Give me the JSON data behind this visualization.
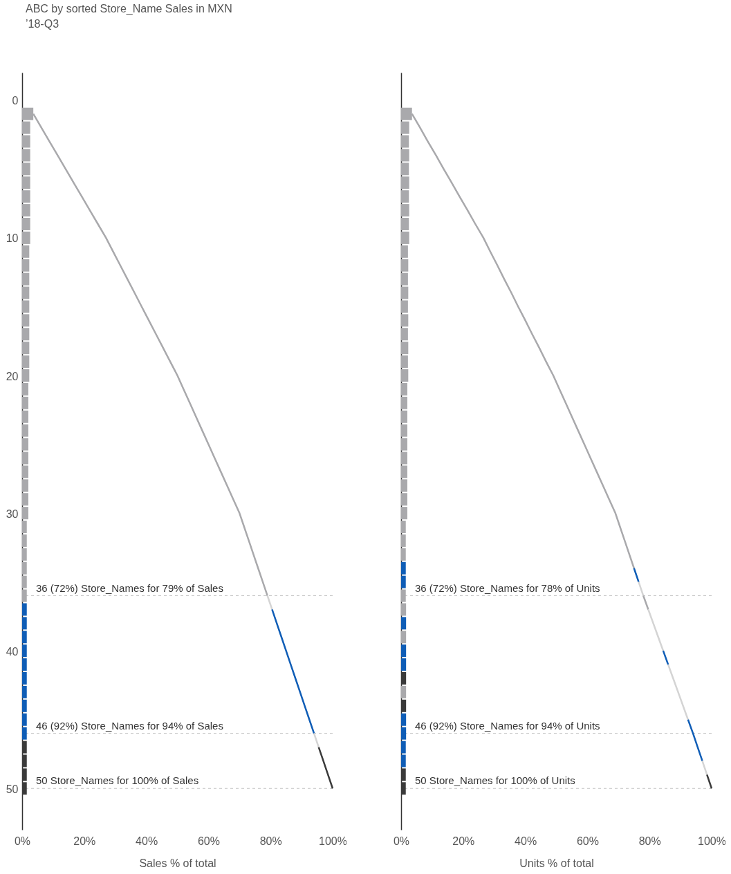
{
  "chart_data": [
    {
      "type": "line",
      "title": "ABC by sorted Store_Name Sales in MXN",
      "subtitle": "’18-Q3",
      "orientation": "horizontal",
      "xlabel": "Sales % of total",
      "xlim": [
        0,
        100
      ],
      "xticks": [
        {
          "value": 0,
          "label": "0%"
        },
        {
          "value": 20,
          "label": "20%"
        },
        {
          "value": 40,
          "label": "40%"
        },
        {
          "value": 60,
          "label": "60%"
        },
        {
          "value": 80,
          "label": "80%"
        },
        {
          "value": 100,
          "label": "100%"
        }
      ],
      "ylim": [
        53,
        -2
      ],
      "yticks": [
        0,
        10,
        20,
        30,
        40,
        50
      ],
      "series": [
        {
          "type": "bar",
          "x": [
            1,
            2,
            3,
            4,
            5,
            6,
            7,
            8,
            9,
            10,
            11,
            12,
            13,
            14,
            15,
            16,
            17,
            18,
            19,
            20,
            21,
            22,
            23,
            24,
            25,
            26,
            27,
            28,
            29,
            30,
            31,
            32,
            33,
            34,
            35,
            36,
            37,
            38,
            39,
            40,
            41,
            42,
            43,
            44,
            45,
            46,
            47,
            48,
            49,
            50
          ],
          "values": [
            3.6,
            2.6,
            2.6,
            2.6,
            2.6,
            2.6,
            2.6,
            2.6,
            2.6,
            2.6,
            2.3,
            2.3,
            2.3,
            2.3,
            2.3,
            2.3,
            2.3,
            2.3,
            2.3,
            2.3,
            2.0,
            2.0,
            2.0,
            2.0,
            2.0,
            2.0,
            2.0,
            2.0,
            2.0,
            2.0,
            1.5,
            1.5,
            1.5,
            1.5,
            1.5,
            1.5,
            1.5,
            1.5,
            1.5,
            1.5,
            1.5,
            1.5,
            1.5,
            1.5,
            1.5,
            1.5,
            1.5,
            1.5,
            1.5,
            1.5
          ],
          "colors": [
            "#a9a9ac",
            "#a9a9ac",
            "#a9a9ac",
            "#a9a9ac",
            "#a9a9ac",
            "#a9a9ac",
            "#a9a9ac",
            "#a9a9ac",
            "#a9a9ac",
            "#a9a9ac",
            "#a9a9ac",
            "#a9a9ac",
            "#a9a9ac",
            "#a9a9ac",
            "#a9a9ac",
            "#a9a9ac",
            "#a9a9ac",
            "#a9a9ac",
            "#a9a9ac",
            "#a9a9ac",
            "#a9a9ac",
            "#a9a9ac",
            "#a9a9ac",
            "#a9a9ac",
            "#a9a9ac",
            "#a9a9ac",
            "#a9a9ac",
            "#a9a9ac",
            "#a9a9ac",
            "#a9a9ac",
            "#a9a9ac",
            "#a9a9ac",
            "#a9a9ac",
            "#a9a9ac",
            "#a9a9ac",
            "#a9a9ac",
            "#0f5db6",
            "#0f5db6",
            "#0f5db6",
            "#0f5db6",
            "#0f5db6",
            "#0f5db6",
            "#0f5db6",
            "#0f5db6",
            "#0f5db6",
            "#0f5db6",
            "#3a3a3a",
            "#3a3a3a",
            "#3a3a3a",
            "#3a3a3a"
          ]
        },
        {
          "color": "#a9a9ac",
          "x": [
            1,
            2,
            3,
            4,
            5,
            6,
            7,
            8,
            9,
            10,
            11,
            12,
            13,
            14,
            15,
            16,
            17,
            18,
            19,
            20,
            21,
            22,
            23,
            24,
            25,
            26,
            27,
            28,
            29,
            30,
            31,
            32,
            33,
            34,
            35,
            36
          ],
          "values": [
            3.6,
            6.2,
            8.8,
            11.4,
            14.0,
            16.6,
            19.2,
            21.8,
            24.4,
            27.0,
            29.3,
            31.6,
            33.9,
            36.2,
            38.5,
            40.8,
            43.1,
            45.4,
            47.7,
            50.0,
            52,
            54,
            56,
            58,
            60,
            62,
            64,
            66,
            68,
            70,
            71.5,
            73,
            74.5,
            76,
            77.5,
            79
          ]
        },
        {
          "color": "#d4d4d4",
          "x": [
            36,
            37
          ],
          "values": [
            79,
            80.5
          ]
        },
        {
          "color": "#0f5db6",
          "x": [
            37,
            38,
            39,
            40,
            41,
            42,
            43,
            44,
            45,
            46
          ],
          "values": [
            80.5,
            82,
            83.5,
            85,
            86.5,
            88,
            89.5,
            91,
            92.5,
            94
          ]
        },
        {
          "color": "#d4d4d4",
          "x": [
            46,
            47
          ],
          "values": [
            94,
            95.5
          ]
        },
        {
          "color": "#3a3a3a",
          "x": [
            47,
            48,
            49,
            50
          ],
          "values": [
            95.5,
            97,
            98.5,
            100
          ]
        }
      ],
      "ref_lines": [
        {
          "axis": "y",
          "value": 36,
          "label": "36 (72%) Store_Names for 79% of Sales",
          "color": "#c4c4c4",
          "line_style": "dashed"
        },
        {
          "axis": "y",
          "value": 46,
          "label": "46 (92%) Store_Names for 94% of Sales",
          "color": "#c4c4c4",
          "line_style": "dashed"
        },
        {
          "axis": "y",
          "value": 50,
          "label": "50 Store_Names for 100% of Sales",
          "color": "#c4c4c4",
          "line_style": "dashed"
        }
      ]
    },
    {
      "type": "line",
      "orientation": "horizontal",
      "xlabel": "Units % of total",
      "xlim": [
        0,
        100
      ],
      "xticks": [
        {
          "value": 0,
          "label": "0%"
        },
        {
          "value": 20,
          "label": "20%"
        },
        {
          "value": 40,
          "label": "40%"
        },
        {
          "value": 60,
          "label": "60%"
        },
        {
          "value": 80,
          "label": "80%"
        },
        {
          "value": 100,
          "label": "100%"
        }
      ],
      "ylim": [
        53,
        -2
      ],
      "yticks": [
        0,
        10,
        20,
        30,
        40,
        50
      ],
      "tick_labels": "x",
      "series": [
        {
          "type": "bar",
          "x": [
            1,
            2,
            3,
            4,
            5,
            6,
            7,
            8,
            9,
            10,
            11,
            12,
            13,
            14,
            15,
            16,
            17,
            18,
            19,
            20,
            21,
            22,
            23,
            24,
            25,
            26,
            27,
            28,
            29,
            30,
            31,
            32,
            33,
            34,
            35,
            36,
            37,
            38,
            39,
            40,
            41,
            42,
            43,
            44,
            45,
            46,
            47,
            48,
            49,
            50
          ],
          "values": [
            3.5,
            2.6,
            2.5,
            2.6,
            2.5,
            2.6,
            2.5,
            2.6,
            2.5,
            2.6,
            2.2,
            2.3,
            2.2,
            2.3,
            2.2,
            2.3,
            2.2,
            2.3,
            2.2,
            2.3,
            2.0,
            2.0,
            2.0,
            2.0,
            2.0,
            2.0,
            2.0,
            2.0,
            2.0,
            2.0,
            1.5,
            1.5,
            1.5,
            1.5,
            1.5,
            1.5,
            1.6,
            1.6,
            1.6,
            1.6,
            1.6,
            1.6,
            1.6,
            1.6,
            1.6,
            1.6,
            1.5,
            1.5,
            1.5,
            1.5
          ],
          "colors": [
            "#a9a9ac",
            "#a9a9ac",
            "#a9a9ac",
            "#a9a9ac",
            "#a9a9ac",
            "#a9a9ac",
            "#a9a9ac",
            "#a9a9ac",
            "#a9a9ac",
            "#a9a9ac",
            "#a9a9ac",
            "#a9a9ac",
            "#a9a9ac",
            "#a9a9ac",
            "#a9a9ac",
            "#a9a9ac",
            "#a9a9ac",
            "#a9a9ac",
            "#a9a9ac",
            "#a9a9ac",
            "#a9a9ac",
            "#a9a9ac",
            "#a9a9ac",
            "#a9a9ac",
            "#a9a9ac",
            "#a9a9ac",
            "#a9a9ac",
            "#a9a9ac",
            "#a9a9ac",
            "#a9a9ac",
            "#a9a9ac",
            "#a9a9ac",
            "#a9a9ac",
            "#0f5db6",
            "#0f5db6",
            "#a9a9ac",
            "#a9a9ac",
            "#0f5db6",
            "#a9a9ac",
            "#0f5db6",
            "#0f5db6",
            "#3a3a3a",
            "#a9a9ac",
            "#3a3a3a",
            "#0f5db6",
            "#0f5db6",
            "#0f5db6",
            "#0f5db6",
            "#3a3a3a",
            "#3a3a3a"
          ]
        },
        {
          "color": "#a9a9ac",
          "x": [
            1,
            2,
            3,
            4,
            5,
            6,
            7,
            8,
            9,
            10,
            11,
            12,
            13,
            14,
            15,
            16,
            17,
            18,
            19,
            20,
            21,
            22,
            23,
            24,
            25,
            26,
            27,
            28,
            29,
            30,
            31,
            32,
            33,
            34
          ],
          "values": [
            3.5,
            6.1,
            8.6,
            11.2,
            13.7,
            16.3,
            18.8,
            21.4,
            23.9,
            26.5,
            28.7,
            31.0,
            33.2,
            35.5,
            37.7,
            40.0,
            42.2,
            44.5,
            46.7,
            49,
            51,
            53,
            55,
            57,
            59,
            61,
            63,
            65,
            67,
            69,
            70.5,
            72,
            73.5,
            75
          ]
        },
        {
          "color": "#0f5db6",
          "x": [
            34,
            35
          ],
          "values": [
            75,
            76.5
          ]
        },
        {
          "color": "#d4d4d4",
          "x": [
            35,
            36
          ],
          "values": [
            76.5,
            78
          ]
        },
        {
          "color": "#a9a9ac",
          "x": [
            36,
            37
          ],
          "values": [
            78,
            79.6
          ]
        },
        {
          "color": "#d4d4d4",
          "x": [
            37,
            38,
            39,
            40
          ],
          "values": [
            79.6,
            81.2,
            82.8,
            84.4
          ]
        },
        {
          "color": "#0f5db6",
          "x": [
            40,
            41
          ],
          "values": [
            84.4,
            86
          ]
        },
        {
          "color": "#d4d4d4",
          "x": [
            41,
            42,
            43,
            44,
            45
          ],
          "values": [
            86,
            87.6,
            89.2,
            90.8,
            92.4
          ]
        },
        {
          "color": "#0f5db6",
          "x": [
            45,
            46,
            47,
            48
          ],
          "values": [
            92.4,
            94,
            95.5,
            97
          ]
        },
        {
          "color": "#d4d4d4",
          "x": [
            48,
            49
          ],
          "values": [
            97,
            98.5
          ]
        },
        {
          "color": "#3a3a3a",
          "x": [
            49,
            50
          ],
          "values": [
            98.5,
            100
          ]
        }
      ],
      "ref_lines": [
        {
          "axis": "y",
          "value": 36,
          "label": "36 (72%) Store_Names for 78% of Units",
          "color": "#c4c4c4",
          "line_style": "dashed"
        },
        {
          "axis": "y",
          "value": 46,
          "label": "46 (92%) Store_Names for 94% of Units",
          "color": "#c4c4c4",
          "line_style": "dashed"
        },
        {
          "axis": "y",
          "value": 50,
          "label": "50 Store_Names for 100% of Units",
          "color": "#c4c4c4",
          "line_style": "dashed"
        }
      ]
    }
  ]
}
